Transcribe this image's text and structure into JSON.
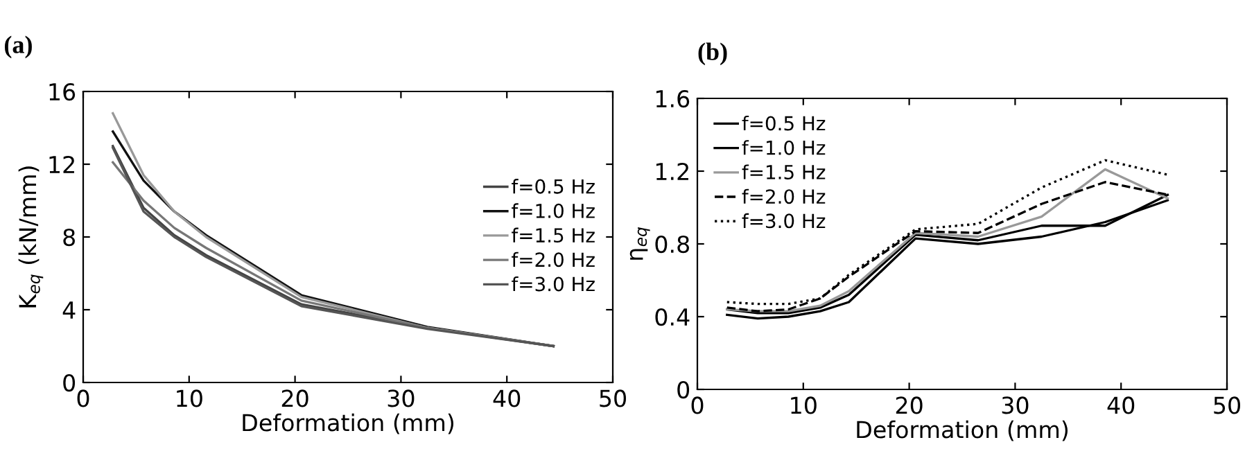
{
  "chart_data": [
    {
      "type": "line",
      "title": "(a)",
      "xlabel": "Deformation (mm)",
      "ylabel": "K$_{eq}$ (kN/mm)",
      "xlim": [
        0,
        50
      ],
      "ylim": [
        0,
        16
      ],
      "xticks": [
        0,
        10,
        20,
        30,
        40,
        50
      ],
      "yticks": [
        0,
        4,
        8,
        12,
        16
      ],
      "grid": false,
      "legend": "right",
      "marker": "none",
      "x": [
        2.8,
        5.7,
        8.6,
        11.6,
        20.6,
        32.5,
        44.4
      ],
      "series": [
        {
          "name": "f=0.5 Hz",
          "color": "#444444",
          "line_style": "solid",
          "values": [
            13.0,
            9.6,
            8.1,
            7.0,
            4.3,
            3.0,
            2.0
          ]
        },
        {
          "name": "f=1.0 Hz",
          "color": "#111111",
          "line_style": "solid",
          "values": [
            13.8,
            11.1,
            9.4,
            8.1,
            4.8,
            3.05,
            2.0
          ]
        },
        {
          "name": "f=1.5 Hz",
          "color": "#999999",
          "line_style": "solid",
          "values": [
            14.8,
            11.4,
            9.4,
            8.0,
            4.7,
            3.0,
            2.0
          ]
        },
        {
          "name": "f=2.0 Hz",
          "color": "#777777",
          "line_style": "solid",
          "values": [
            12.1,
            10.0,
            8.5,
            7.4,
            4.5,
            3.0,
            2.0
          ]
        },
        {
          "name": "f=3.0 Hz",
          "color": "#555555",
          "line_style": "solid",
          "values": [
            12.9,
            9.4,
            8.0,
            6.9,
            4.2,
            2.95,
            2.0
          ]
        }
      ]
    },
    {
      "type": "line",
      "title": "(b)",
      "xlabel": "Deformation (mm)",
      "ylabel": "η$_{eq}$",
      "xlim": [
        0,
        50
      ],
      "ylim": [
        0,
        1.6
      ],
      "xticks": [
        0,
        10,
        20,
        30,
        40,
        50
      ],
      "yticks": [
        0,
        0.4,
        0.8,
        1.2,
        1.6
      ],
      "grid": false,
      "legend": "top left",
      "marker": "none",
      "x": [
        2.8,
        5.7,
        8.6,
        11.6,
        14.3,
        20.6,
        26.5,
        32.5,
        38.5,
        44.4
      ],
      "series": [
        {
          "name": "f=0.5 Hz",
          "color": "#000000",
          "line_style": "solid",
          "values": [
            0.41,
            0.39,
            0.4,
            0.43,
            0.48,
            0.83,
            0.8,
            0.84,
            0.92,
            1.04
          ]
        },
        {
          "name": "f=1.0 Hz",
          "color": "#000000",
          "line_style": "solid",
          "values": [
            0.44,
            0.42,
            0.42,
            0.45,
            0.52,
            0.85,
            0.82,
            0.9,
            0.9,
            1.07
          ]
        },
        {
          "name": "f=1.5 Hz",
          "color": "#999999",
          "line_style": "solid",
          "values": [
            0.44,
            0.43,
            0.43,
            0.46,
            0.54,
            0.86,
            0.84,
            0.95,
            1.21,
            1.05
          ]
        },
        {
          "name": "f=2.0 Hz",
          "color": "#000000",
          "line_style": "dashed",
          "values": [
            0.45,
            0.43,
            0.44,
            0.5,
            0.62,
            0.87,
            0.86,
            1.02,
            1.14,
            1.07
          ]
        },
        {
          "name": "f=3.0 Hz",
          "color": "#000000",
          "line_style": "dotted",
          "values": [
            0.48,
            0.47,
            0.47,
            0.5,
            0.63,
            0.88,
            0.91,
            1.11,
            1.26,
            1.18
          ]
        }
      ]
    }
  ]
}
